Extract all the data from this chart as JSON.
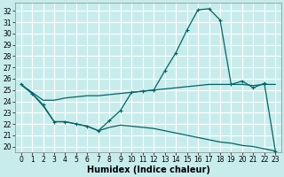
{
  "title": "",
  "xlabel": "Humidex (Indice chaleur)",
  "bg_color": "#c8ecec",
  "grid_color": "#ffffff",
  "line_color": "#006666",
  "x_ticks": [
    0,
    1,
    2,
    3,
    4,
    5,
    6,
    7,
    8,
    9,
    10,
    11,
    12,
    13,
    14,
    15,
    16,
    17,
    18,
    19,
    20,
    21,
    22,
    23
  ],
  "ylim": [
    19.5,
    32.7
  ],
  "xlim": [
    -0.5,
    23.5
  ],
  "yticks": [
    20,
    21,
    22,
    23,
    24,
    25,
    26,
    27,
    28,
    29,
    30,
    31,
    32
  ],
  "line1_y": [
    25.5,
    24.7,
    23.7,
    22.2,
    22.2,
    22.0,
    21.8,
    21.4,
    22.3,
    23.2,
    24.8,
    24.9,
    25.0,
    26.7,
    28.3,
    30.3,
    32.1,
    32.2,
    31.2,
    25.5,
    25.8,
    25.2,
    25.6,
    19.6
  ],
  "line2_y": [
    25.5,
    24.8,
    24.1,
    24.1,
    24.3,
    24.4,
    24.5,
    24.5,
    24.6,
    24.7,
    24.8,
    24.9,
    25.0,
    25.1,
    25.2,
    25.3,
    25.4,
    25.5,
    25.5,
    25.5,
    25.5,
    25.4,
    25.5,
    25.5
  ],
  "line3_y": [
    25.5,
    24.7,
    23.6,
    22.2,
    22.2,
    22.0,
    21.8,
    21.4,
    21.7,
    21.9,
    21.8,
    21.7,
    21.6,
    21.4,
    21.2,
    21.0,
    20.8,
    20.6,
    20.4,
    20.3,
    20.1,
    20.0,
    19.8,
    19.6
  ],
  "tick_fontsize": 5.5,
  "label_fontsize": 7
}
